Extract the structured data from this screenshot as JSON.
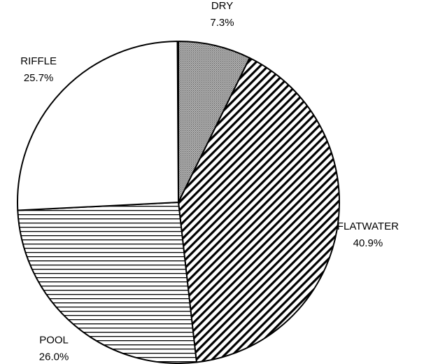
{
  "chart_data": {
    "type": "pie",
    "categories": [
      "DRY",
      "FLATWATER",
      "POOL",
      "RIFFLE"
    ],
    "values": [
      7.3,
      40.9,
      26.0,
      25.7
    ],
    "value_labels": [
      "7.3%",
      "40.9%",
      "26.0%",
      "25.7%"
    ]
  }
}
